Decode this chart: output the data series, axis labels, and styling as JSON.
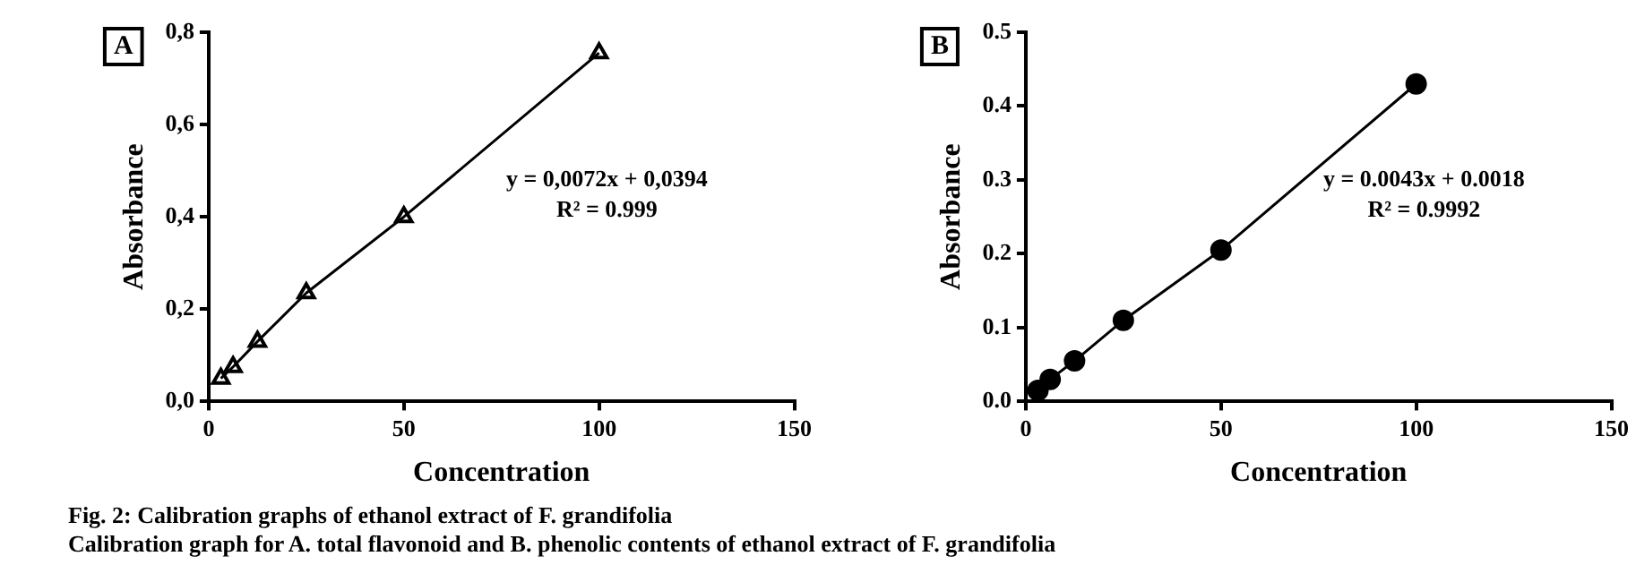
{
  "chart_data": [
    {
      "type": "line",
      "title": "A",
      "xlabel": "Concentration",
      "ylabel": "Absorbance",
      "x": [
        3.125,
        6.25,
        12.5,
        25,
        50,
        100
      ],
      "series": [
        {
          "color": "#000000",
          "values": [
            0.05,
            0.075,
            0.13,
            0.235,
            0.4,
            0.755
          ]
        }
      ],
      "marker": "triangle",
      "grid": false,
      "legend": false,
      "xlim": [
        0,
        150
      ],
      "xticks": [
        0,
        50,
        100,
        150
      ],
      "ylim": [
        0,
        0.8
      ],
      "yticks": [
        {
          "value": 0,
          "label": "0,0"
        },
        {
          "value": 0.2,
          "label": "0,2"
        },
        {
          "value": 0.4,
          "label": "0,4"
        },
        {
          "value": 0.6,
          "label": "0,6"
        },
        {
          "value": 0.8,
          "label": "0,8"
        }
      ],
      "annotations": [
        "y = 0,0072x + 0,0394",
        "R² = 0.999",
        "Fig. 2: Calibration graphs of ethanol extract of F. grandifolia",
        "Calibration graph for A. total flavonoid and B. phenolic contents of ethanol extract of F. grandifolia"
      ]
    },
    {
      "type": "line",
      "title": "B",
      "xlabel": "Concentration",
      "ylabel": "Absorbance",
      "x": [
        3.125,
        6.25,
        12.5,
        25,
        50,
        100
      ],
      "series": [
        {
          "color": "#000000",
          "values": [
            0.015,
            0.03,
            0.055,
            0.11,
            0.205,
            0.43
          ]
        }
      ],
      "marker": "circle",
      "grid": false,
      "legend": false,
      "xlim": [
        0,
        150
      ],
      "xticks": [
        0,
        50,
        100,
        150
      ],
      "ylim": [
        0,
        0.5
      ],
      "yticks": [
        {
          "value": 0,
          "label": "0.0"
        },
        {
          "value": 0.1,
          "label": "0.1"
        },
        {
          "value": 0.2,
          "label": "0.2"
        },
        {
          "value": 0.3,
          "label": "0.3"
        },
        {
          "value": 0.4,
          "label": "0.4"
        },
        {
          "value": 0.5,
          "label": "0.5"
        }
      ],
      "annotations": [
        "y = 0.0043x + 0.0018",
        "R² = 0.9992"
      ]
    }
  ]
}
